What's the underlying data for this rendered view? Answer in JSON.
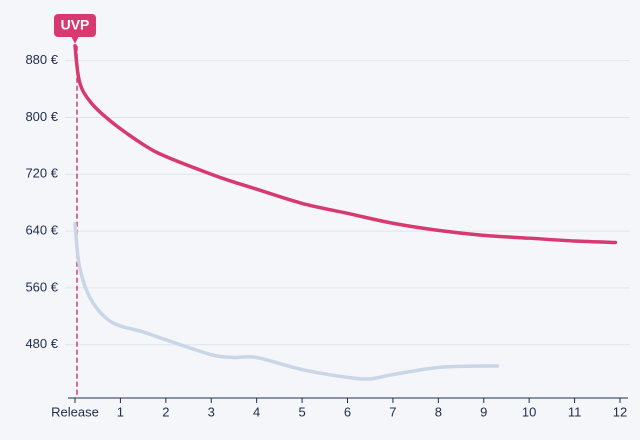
{
  "chart_data": {
    "type": "line",
    "annotation": {
      "text": "UVP",
      "x": 0,
      "y": 901
    },
    "series": [
      {
        "color": "#d63a6f",
        "x": [
          0,
          0.1,
          0.35,
          0.8,
          1.5,
          2,
          3,
          3.5,
          4,
          5,
          6,
          7,
          8,
          9,
          10,
          11,
          11.9
        ],
        "values": [
          901,
          850,
          821,
          794,
          762,
          745,
          720,
          709,
          699,
          679,
          665,
          651,
          641,
          634,
          630,
          626,
          624
        ]
      },
      {
        "color": "#c9d6e6",
        "x": [
          0,
          0.1,
          0.35,
          0.8,
          1.5,
          2,
          3,
          3.5,
          4,
          5,
          6,
          6.5,
          7,
          8,
          9,
          9.3
        ],
        "values": [
          650,
          590,
          544,
          512,
          498,
          487,
          466,
          462,
          462,
          445,
          434,
          432,
          438,
          448,
          450,
          450
        ]
      }
    ],
    "xlim": [
      0,
      12
    ],
    "xticks": [
      {
        "value": 0,
        "label": "Release"
      },
      1,
      2,
      3,
      4,
      5,
      6,
      7,
      8,
      9,
      10,
      11,
      12
    ],
    "ylim": [
      405,
      940
    ],
    "yticks": [
      {
        "value": 480,
        "label": "480 €"
      },
      {
        "value": 560,
        "label": "560 €"
      },
      {
        "value": 640,
        "label": "640 €"
      },
      {
        "value": 720,
        "label": "720 €"
      },
      {
        "value": 800,
        "label": "800 €"
      },
      {
        "value": 880,
        "label": "880 €"
      }
    ],
    "grid": true
  }
}
